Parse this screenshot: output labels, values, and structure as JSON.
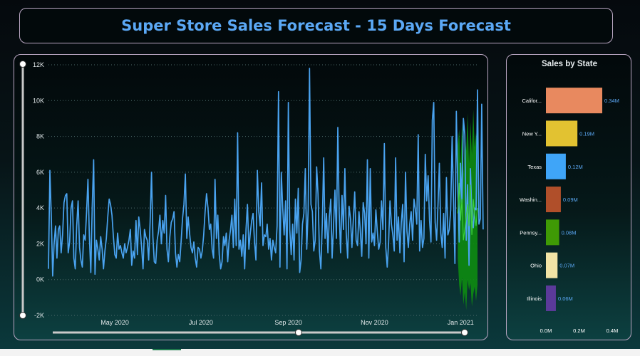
{
  "header": {
    "title": "Super Store Sales Forecast - 15 Days Forecast"
  },
  "colors": {
    "line": "#4aa3f0",
    "forecast_band": "#0e8a12",
    "forecast_line": "#3ccf3c",
    "title": "#5ba8f5"
  },
  "chart_data": [
    {
      "type": "line",
      "title": "",
      "xlabel": "",
      "ylabel": "",
      "y_tick_labels": [
        "12K",
        "10K",
        "8K",
        "6K",
        "4K",
        "2K",
        "0K",
        "-2K"
      ],
      "y_ticks": [
        12000,
        10000,
        8000,
        6000,
        4000,
        2000,
        0,
        -2000
      ],
      "ylim": [
        -2000,
        12000
      ],
      "x_tick_labels": [
        "May 2020",
        "Jul 2020",
        "Sep 2020",
        "Nov 2020",
        "Jan 2021"
      ],
      "x_ticks": [
        "2020-05-01",
        "2020-07-01",
        "2020-09-01",
        "2020-11-01",
        "2021-01-01"
      ],
      "xlim": [
        "2020-03-15",
        "2021-01-13"
      ],
      "grid": true,
      "series": [
        {
          "kind": "actual",
          "x_start": "2020-03-15",
          "x_step_days": 1,
          "values": [
            600,
            6100,
            3500,
            200,
            2000,
            3000,
            1200,
            2800,
            3000,
            1500,
            2500,
            4300,
            4700,
            4800,
            1500,
            2100,
            4000,
            4400,
            1200,
            600,
            3000,
            4400,
            1800,
            1100,
            700,
            2500,
            2200,
            3800,
            5600,
            2400,
            400,
            4100,
            6700,
            300,
            2200,
            1700,
            1100,
            2400,
            1700,
            600,
            1600,
            2300,
            3500,
            4500,
            4200,
            3600,
            2400,
            1400,
            1200,
            2600,
            1700,
            1900,
            1500,
            1200,
            2000,
            1500,
            1800,
            2200,
            2800,
            800,
            1600,
            1200,
            3300,
            1400,
            3500,
            2800,
            1800,
            600,
            2800,
            2400,
            2200,
            1100,
            3200,
            6000,
            2400,
            1000,
            900,
            2200,
            2700,
            3600,
            2000,
            3300,
            2600,
            4700,
            1700,
            1000,
            2400,
            3200,
            3400,
            3800,
            1500,
            700,
            1400,
            1000,
            2100,
            3400,
            4200,
            5900,
            2300,
            3500,
            2600,
            1800,
            1500,
            2100,
            1200,
            700,
            1800,
            1700,
            1200,
            1600,
            2500,
            3800,
            4800,
            4000,
            2800,
            3100,
            1700,
            1200,
            5600,
            2300,
            3600,
            1400,
            600,
            1000,
            2400,
            1900,
            2600,
            1000,
            2200,
            2800,
            3600,
            1800,
            4500,
            1900,
            8200,
            1700,
            2200,
            1300,
            2500,
            600,
            2800,
            4200,
            1700,
            2600,
            3300,
            3700,
            2100,
            1100,
            6100,
            3800,
            3000,
            5400,
            1900,
            2500,
            2400,
            3100,
            1700,
            2300,
            1100,
            2200,
            1800,
            1500,
            3000,
            10500,
            700,
            6000,
            4000,
            2500,
            4400,
            600,
            9900,
            2800,
            1400,
            3100,
            1100,
            4500,
            2600,
            5100,
            400,
            1100,
            3100,
            3700,
            6200,
            1700,
            3900,
            11800,
            4200,
            3800,
            1600,
            2200,
            6300,
            4800,
            1600,
            600,
            3100,
            6800,
            2300,
            3700,
            1500,
            3500,
            4500,
            1200,
            3000,
            5000,
            2300,
            8500,
            3800,
            1500,
            4700,
            2800,
            6200,
            2600,
            1200,
            4100,
            3400,
            1800,
            3300,
            4900,
            2200,
            1900,
            3800,
            2700,
            1300,
            4300,
            3700,
            2000,
            6700,
            1200,
            6200,
            2100,
            2600,
            1900,
            3900,
            2700,
            1700,
            2100,
            4400,
            2800,
            7600,
            1800,
            700,
            2000,
            4400,
            3100,
            2500,
            1600,
            6800,
            2200,
            3500,
            1500,
            3200,
            4200,
            1000,
            6000,
            2700,
            1800,
            3100,
            3800,
            2200,
            4500,
            3900,
            3100,
            8100,
            1600,
            3300,
            1800,
            2300,
            7000,
            4400,
            5800,
            3300,
            2100,
            8900,
            9900,
            3200,
            2200,
            4200,
            6500,
            2600,
            1800,
            3700,
            1200,
            5700,
            2500,
            2800,
            3900,
            8000,
            4500,
            900,
            9400,
            5200,
            2100,
            6500,
            4300,
            9000,
            8100,
            2200,
            5300,
            800,
            6200,
            3500,
            2900,
            4000,
            3900,
            10600,
            3100,
            3400,
            9800,
            2800
          ]
        },
        {
          "kind": "forecast",
          "x_start": "2020-12-30",
          "x_step_days": 1,
          "values": [
            3700,
            5400,
            3300,
            4500,
            2200,
            2800,
            3500,
            4200,
            3000,
            5300,
            2500,
            4500,
            3600,
            3000,
            4000
          ],
          "lower": [
            1200,
            -300,
            -900,
            100,
            -1400,
            -700,
            -1700,
            0,
            -600,
            -200,
            -1500,
            -800,
            -400,
            -1200,
            -300
          ],
          "upper": [
            7500,
            8400,
            6200,
            8800,
            5900,
            8100,
            7200,
            9300,
            6500,
            8800,
            7000,
            9500,
            7400,
            8200,
            7100
          ]
        }
      ]
    },
    {
      "type": "bar",
      "orientation": "horizontal",
      "title": "Sales by State",
      "categories": [
        "Califor...",
        "New Y...",
        "Texas",
        "Washin...",
        "Pennsy...",
        "Ohio",
        "Illinois"
      ],
      "values": [
        0.34,
        0.19,
        0.12,
        0.09,
        0.08,
        0.07,
        0.06
      ],
      "value_labels": [
        "0.34M",
        "0.19M",
        "0.12M",
        "0.09M",
        "0.08M",
        "0.07M",
        "0.06M"
      ],
      "bar_colors": [
        "#e8895f",
        "#e2c231",
        "#3fa5f8",
        "#b04f2a",
        "#3f9a05",
        "#f1e3a5",
        "#5b3a9a"
      ],
      "x_tick_labels": [
        "0.0M",
        "0.2M",
        "0.4M"
      ],
      "x_ticks": [
        0,
        0.2,
        0.4
      ],
      "xlim": [
        0,
        0.4
      ]
    }
  ]
}
